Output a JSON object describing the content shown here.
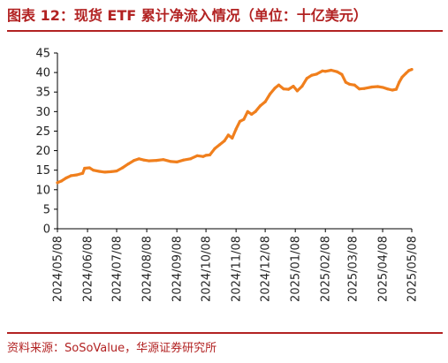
{
  "title": "图表 12：现货 ETF 累计净流入情况（单位：十亿美元）",
  "source": "资料来源：SoSoValue，华源证券研究所",
  "colors": {
    "accent": "#b22222",
    "line": "#f07f1d",
    "axis": "#000000"
  },
  "chart_data": {
    "type": "line",
    "title": "",
    "xlabel": "",
    "ylabel": "",
    "ylim": [
      0,
      45
    ],
    "yticks": [
      0,
      5,
      10,
      15,
      20,
      25,
      30,
      35,
      40,
      45
    ],
    "xticks": [
      "2024/05/08",
      "2024/06/08",
      "2024/07/08",
      "2024/08/08",
      "2024/09/08",
      "2024/10/08",
      "2024/11/08",
      "2024/12/08",
      "2025/01/08",
      "2025/02/08",
      "2025/03/08",
      "2025/04/08",
      "2025/05/08"
    ],
    "grid": false,
    "legend": "none",
    "series": [
      {
        "name": "",
        "points": [
          [
            "2024/05/08",
            11.8
          ],
          [
            "2024/05/12",
            12.2
          ],
          [
            "2024/05/17",
            13.0
          ],
          [
            "2024/05/22",
            13.6
          ],
          [
            "2024/05/28",
            13.8
          ],
          [
            "2024/06/03",
            14.2
          ],
          [
            "2024/06/05",
            15.5
          ],
          [
            "2024/06/10",
            15.6
          ],
          [
            "2024/06/14",
            15.0
          ],
          [
            "2024/06/20",
            14.7
          ],
          [
            "2024/06/26",
            14.5
          ],
          [
            "2024/07/02",
            14.6
          ],
          [
            "2024/07/08",
            14.8
          ],
          [
            "2024/07/14",
            15.6
          ],
          [
            "2024/07/20",
            16.6
          ],
          [
            "2024/07/26",
            17.5
          ],
          [
            "2024/07/31",
            17.9
          ],
          [
            "2024/08/05",
            17.6
          ],
          [
            "2024/08/10",
            17.4
          ],
          [
            "2024/08/18",
            17.5
          ],
          [
            "2024/08/25",
            17.7
          ],
          [
            "2024/09/02",
            17.2
          ],
          [
            "2024/09/08",
            17.1
          ],
          [
            "2024/09/15",
            17.6
          ],
          [
            "2024/09/22",
            17.9
          ],
          [
            "2024/09/29",
            18.7
          ],
          [
            "2024/10/05",
            18.5
          ],
          [
            "2024/10/08",
            18.8
          ],
          [
            "2024/10/12",
            18.9
          ],
          [
            "2024/10/17",
            20.5
          ],
          [
            "2024/10/22",
            21.5
          ],
          [
            "2024/10/27",
            22.5
          ],
          [
            "2024/10/31",
            24.0
          ],
          [
            "2024/11/04",
            23.2
          ],
          [
            "2024/11/08",
            25.5
          ],
          [
            "2024/11/12",
            27.5
          ],
          [
            "2024/11/16",
            28.0
          ],
          [
            "2024/11/20",
            30.0
          ],
          [
            "2024/11/24",
            29.3
          ],
          [
            "2024/11/28",
            30.0
          ],
          [
            "2024/12/03",
            31.5
          ],
          [
            "2024/12/08",
            32.5
          ],
          [
            "2024/12/13",
            34.5
          ],
          [
            "2024/12/18",
            36.0
          ],
          [
            "2024/12/22",
            36.8
          ],
          [
            "2024/12/27",
            35.8
          ],
          [
            "2025/01/01",
            35.7
          ],
          [
            "2025/01/06",
            36.5
          ],
          [
            "2025/01/10",
            35.3
          ],
          [
            "2025/01/15",
            36.5
          ],
          [
            "2025/01/20",
            38.5
          ],
          [
            "2025/01/25",
            39.3
          ],
          [
            "2025/01/30",
            39.6
          ],
          [
            "2025/02/05",
            40.4
          ],
          [
            "2025/02/08",
            40.3
          ],
          [
            "2025/02/14",
            40.6
          ],
          [
            "2025/02/20",
            40.2
          ],
          [
            "2025/02/25",
            39.5
          ],
          [
            "2025/03/01",
            37.5
          ],
          [
            "2025/03/05",
            37.0
          ],
          [
            "2025/03/10",
            36.8
          ],
          [
            "2025/03/15",
            35.8
          ],
          [
            "2025/03/20",
            35.9
          ],
          [
            "2025/03/28",
            36.3
          ],
          [
            "2025/04/03",
            36.4
          ],
          [
            "2025/04/08",
            36.2
          ],
          [
            "2025/04/13",
            35.8
          ],
          [
            "2025/04/18",
            35.5
          ],
          [
            "2025/04/22",
            35.7
          ],
          [
            "2025/04/25",
            37.5
          ],
          [
            "2025/04/28",
            38.8
          ],
          [
            "2025/05/02",
            39.8
          ],
          [
            "2025/05/05",
            40.5
          ],
          [
            "2025/05/08",
            40.8
          ]
        ]
      }
    ]
  }
}
